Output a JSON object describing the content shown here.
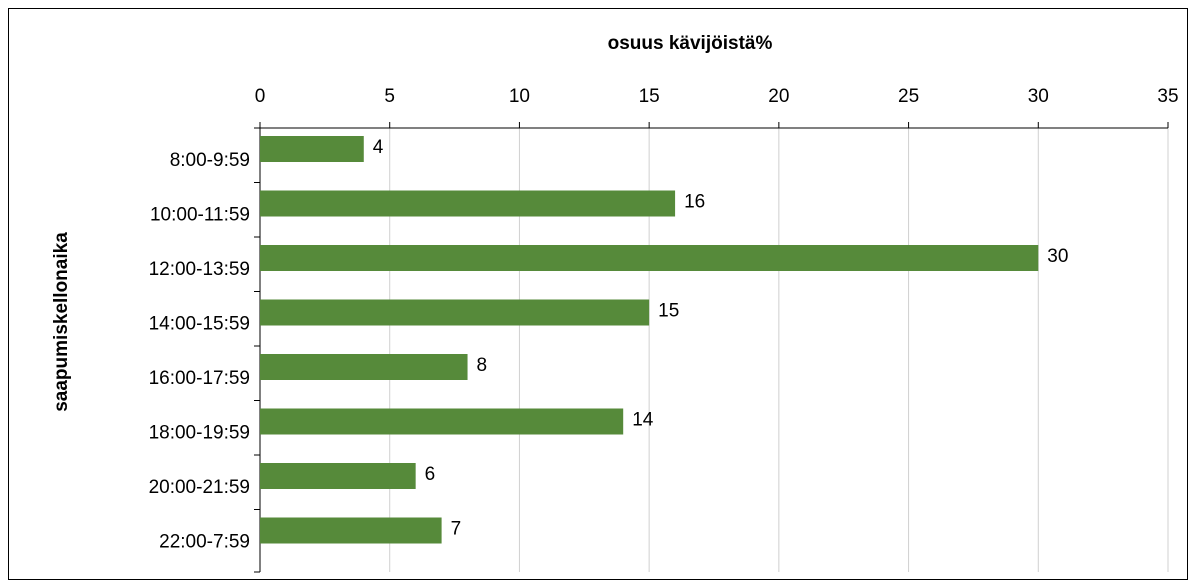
{
  "chart_data": {
    "type": "bar",
    "orientation": "horizontal",
    "x_label": "osuus kävijöistä%",
    "y_label": "saapumiskellonaika",
    "categories": [
      "8:00-9:59",
      "10:00-11:59",
      "12:00-13:59",
      "14:00-15:59",
      "16:00-17:59",
      "18:00-19:59",
      "20:00-21:59",
      "22:00-7:59"
    ],
    "values": [
      4,
      16,
      30,
      15,
      8,
      14,
      6,
      7
    ],
    "color": "#568a3a",
    "xlim": [
      0,
      35
    ],
    "xticks": [
      0,
      5,
      10,
      15,
      20,
      25,
      30,
      35
    ],
    "grid": true,
    "data_labels": true
  }
}
